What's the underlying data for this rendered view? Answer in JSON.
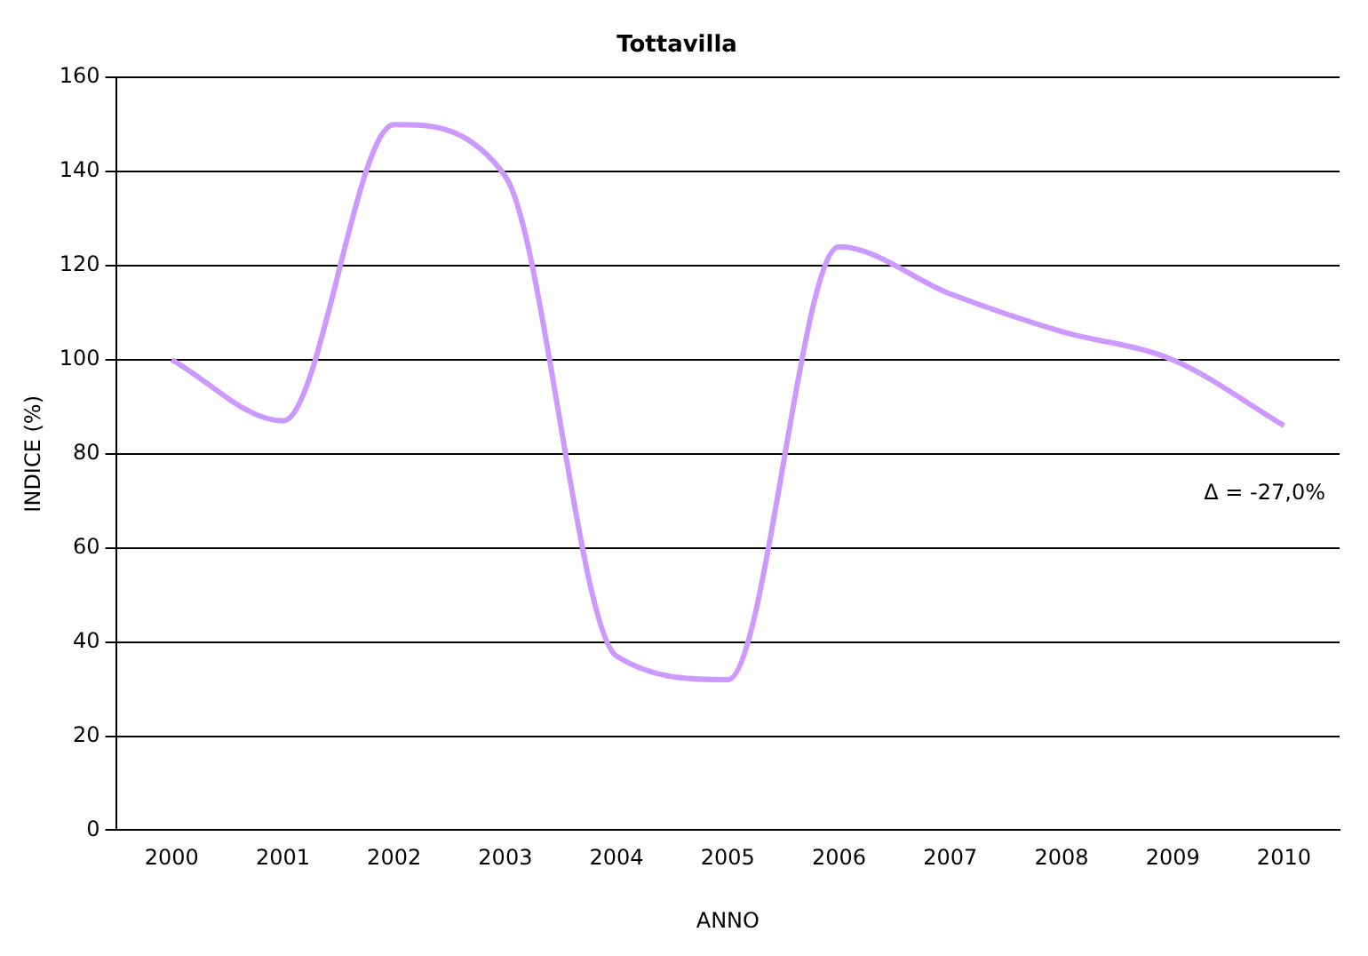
{
  "chart_data": {
    "type": "line",
    "title": "Tottavilla",
    "xlabel": "ANNO",
    "ylabel": "INDICE (%)",
    "categories": [
      "2000",
      "2001",
      "2002",
      "2003",
      "2004",
      "2005",
      "2006",
      "2007",
      "2008",
      "2009",
      "2010"
    ],
    "series": [
      {
        "color": "#cc99ff",
        "values": [
          100,
          87,
          150,
          139,
          37,
          32,
          124,
          114,
          106,
          100,
          86
        ]
      }
    ],
    "ylim": [
      0,
      160
    ],
    "yticks": [
      0,
      20,
      40,
      60,
      80,
      100,
      120,
      140,
      160
    ],
    "grid": "y",
    "legend": false,
    "marker": "none",
    "line_style": "solid",
    "annotations": [
      "Δ = -27,0%"
    ]
  }
}
